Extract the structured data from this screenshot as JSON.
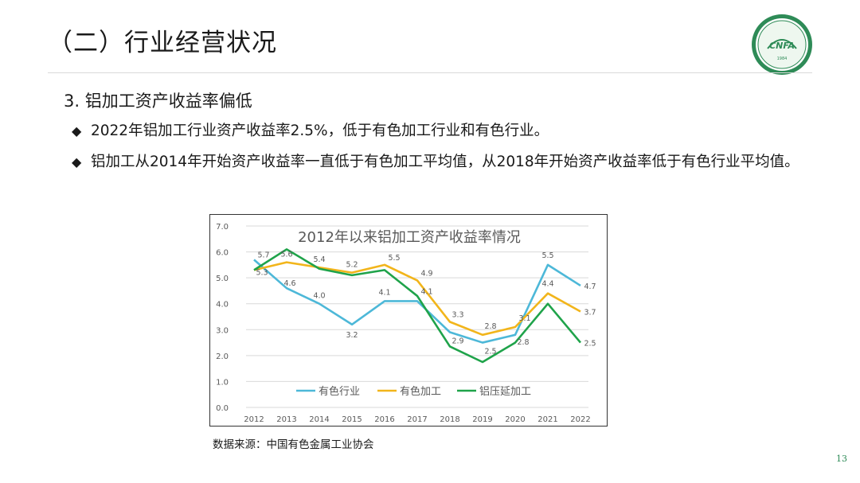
{
  "slide": {
    "title": "（二）行业经营状况",
    "subtitle": "3. 铝加工资产收益率偏低",
    "bullets": [
      "2022年铝加工行业资产收益率2.5%，低于有色加工行业和有色行业。",
      "铝加工从2014年开始资产收益率一直低于有色加工平均值，从2018年开始资产收益率低于有色行业平均值。"
    ],
    "source": "数据来源：中国有色金属工业协会",
    "page_number": "13",
    "logo": {
      "text": "CNFA",
      "year": "1984",
      "color": "#2e8b57"
    },
    "bullet_icon": "◆"
  },
  "chart_data": {
    "type": "line",
    "title": "2012年以来铝加工资产收益率情况",
    "x": [
      "2012",
      "2013",
      "2014",
      "2015",
      "2016",
      "2017",
      "2018",
      "2019",
      "2020",
      "2021",
      "2022"
    ],
    "ylim": [
      0,
      7
    ],
    "yticks": [
      "0.0",
      "1.0",
      "2.0",
      "3.0",
      "4.0",
      "5.0",
      "6.0",
      "7.0"
    ],
    "grid": true,
    "legend": "bottom",
    "series": [
      {
        "name": "有色行业",
        "color": "#4db8d8",
        "values": [
          5.7,
          4.6,
          4.0,
          3.2,
          4.1,
          4.1,
          2.9,
          2.5,
          2.8,
          5.5,
          4.7
        ],
        "labels": [
          "5.7",
          "4.6",
          "4.0",
          "3.2",
          "4.1",
          "4.1",
          "2.9",
          "2.5",
          "2.8",
          "5.5",
          "4.7"
        ]
      },
      {
        "name": "有色加工",
        "color": "#f2b51b",
        "values": [
          5.3,
          5.6,
          5.4,
          5.2,
          5.5,
          4.9,
          3.3,
          2.8,
          3.1,
          4.4,
          3.7
        ],
        "labels": [
          "5.3",
          "5.6",
          "5.4",
          "5.2",
          "5.5",
          "4.9",
          "3.3",
          "2.8",
          "3.1",
          "4.4",
          "3.7"
        ]
      },
      {
        "name": "铝压延加工",
        "color": "#1fa34a",
        "values": [
          5.3,
          6.1,
          5.35,
          5.1,
          5.3,
          4.3,
          2.35,
          1.75,
          2.5,
          4.0,
          2.5
        ],
        "labels": [
          "",
          "",
          "",
          "",
          "",
          "",
          "",
          "",
          "",
          "",
          "2.5"
        ]
      }
    ]
  }
}
